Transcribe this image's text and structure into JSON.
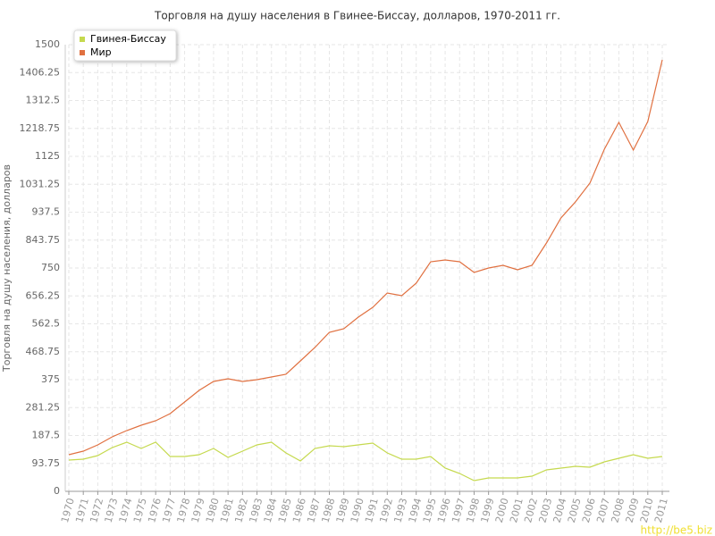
{
  "chart_data": {
    "type": "line",
    "title": "Торговля на душу населения в Гвинее-Биссау, долларов, 1970-2011 гг.",
    "y_label": "Торговля на душу населения, долларов",
    "watermark": "http://be5.biz",
    "categories": [
      "1970",
      "1971",
      "1972",
      "1973",
      "1974",
      "1975",
      "1976",
      "1977",
      "1978",
      "1979",
      "1980",
      "1981",
      "1982",
      "1983",
      "1984",
      "1985",
      "1986",
      "1987",
      "1988",
      "1989",
      "1990",
      "1991",
      "1992",
      "1993",
      "1994",
      "1995",
      "1996",
      "1997",
      "1998",
      "1999",
      "2000",
      "2001",
      "2002",
      "2003",
      "2004",
      "2005",
      "2006",
      "2007",
      "2008",
      "2009",
      "2010",
      "2011"
    ],
    "series": [
      {
        "name": "Гвинея-Биссау",
        "color": "#c5d94e",
        "values": [
          105,
          108,
          120,
          147,
          165,
          144,
          165,
          117,
          117,
          123,
          144,
          114,
          135,
          156,
          165,
          129,
          102,
          144,
          153,
          150,
          156,
          162,
          129,
          108,
          108,
          117,
          78,
          60,
          36,
          45,
          45,
          45,
          51,
          72,
          78,
          84,
          81,
          99,
          111,
          123,
          111,
          117
        ]
      },
      {
        "name": "Мир",
        "color": "#e07040",
        "values": [
          123,
          135,
          156,
          183,
          204,
          222,
          237,
          261,
          300,
          339,
          369,
          378,
          369,
          375,
          384,
          393,
          438,
          483,
          534,
          546,
          585,
          618,
          666,
          657,
          699,
          771,
          777,
          771,
          735,
          750,
          759,
          744,
          759,
          834,
          918,
          972,
          1035,
          1149,
          1239,
          1146,
          1242,
          1449
        ]
      }
    ],
    "ylim": [
      0,
      1500
    ],
    "yticks": [
      0,
      93.75,
      187.5,
      281.25,
      375,
      468.75,
      562.5,
      656.25,
      750,
      843.75,
      937.5,
      1031.25,
      1125,
      1218.75,
      1312.5,
      1406.25,
      1500
    ],
    "grid": true
  }
}
